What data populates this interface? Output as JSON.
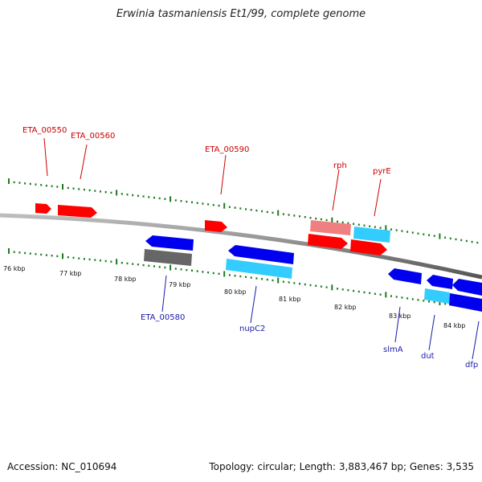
{
  "title": "Erwinia tasmaniensis Et1/99, complete genome",
  "footer": {
    "accession": "Accession: NC_010694",
    "topology": "Topology: circular; Length: 3,883,467 bp; Genes: 3,535"
  },
  "colors": {
    "forward_gene": "#ff0000",
    "forward_gene_light": "#f08080",
    "forward_label": "#cc0000",
    "reverse_gene": "#0000ee",
    "reverse_gene_light": "#33ccff",
    "reverse_label": "#1a1aaa",
    "pseudo_gene": "#666666",
    "backbone": "#888888",
    "tick": "#1f7a1f"
  },
  "scale": {
    "kbp_labels": [
      "76 kbp",
      "77 kbp",
      "78 kbp",
      "79 kbp",
      "80 kbp",
      "81 kbp",
      "82 kbp",
      "83 kbp",
      "84 kbp"
    ]
  },
  "gene_labels": {
    "forward": [
      "ETA_00550",
      "ETA_00560",
      "ETA_00590",
      "rph",
      "pyrE"
    ],
    "reverse": [
      "ETA_00580",
      "nupC2",
      "slmA",
      "dut",
      "dfp"
    ]
  }
}
